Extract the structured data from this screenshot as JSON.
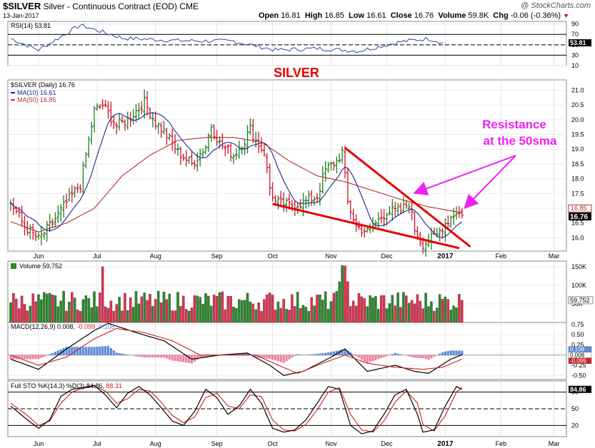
{
  "header": {
    "symbol": "$SILVER",
    "description": "Silver - Continuous Contract (EOD)",
    "exchange": "CME",
    "date": "13-Jan-2017",
    "credit": "@ StockCharts.com",
    "open_label": "Open",
    "open": "16.81",
    "high_label": "High",
    "high": "16.85",
    "low_label": "Low",
    "low": "16.61",
    "close_label": "Close",
    "close": "16.76",
    "volume_label": "Volume",
    "volume": "59.8K",
    "chg_label": "Chg",
    "chg": "-0.06 (-0.36%)"
  },
  "colors": {
    "up": "#1e7d1e",
    "down": "#d01030",
    "ma10": "#1a2a8a",
    "ma50": "#b0303a",
    "annotation_red": "#e60000",
    "annotation_magenta": "#ee22ee",
    "rsi_line": "#2a4aa0",
    "volume_up": "#2a8a2a",
    "volume_down": "#e03050",
    "macd_line": "#000000",
    "macd_signal": "#d02020",
    "hist_pos": "#5a8ad8",
    "hist_neg": "#f080a0",
    "sto_k": "#000000",
    "sto_d": "#d02020"
  },
  "annotations": {
    "title": "SILVER",
    "note_line1": "Resistance",
    "note_line2": "at the 50sma"
  },
  "chart_data": [
    {
      "panel": "rsi",
      "type": "line",
      "legend": "RSI(14) 53.81",
      "last_value_label": "53.81",
      "y_ticks": [
        10,
        30,
        50,
        70,
        90
      ],
      "levels": [
        30,
        70
      ],
      "ylim": [
        10,
        95
      ],
      "key_values": [
        [
          0,
          62
        ],
        [
          10,
          40
        ],
        [
          25,
          88
        ],
        [
          40,
          63
        ],
        [
          60,
          58
        ],
        [
          80,
          57
        ],
        [
          95,
          40
        ],
        [
          110,
          43
        ],
        [
          125,
          38
        ],
        [
          140,
          56
        ],
        [
          150,
          62
        ],
        [
          155,
          54
        ]
      ]
    },
    {
      "panel": "price",
      "type": "ohlc",
      "legend": "$SILVER (Daily) 16.76",
      "ma10_label": "MA(10) 16.61",
      "ma50_label": "MA(50) 16.85",
      "last_price_label": "16.76",
      "ma50_tag": "16.85",
      "ylim": [
        15.55,
        21.35
      ],
      "y_ticks": [
        "16.0",
        "16.5",
        "17.0",
        "17.5",
        "18.0",
        "18.5",
        "19.0",
        "19.5",
        "20.0",
        "20.5",
        "21.0"
      ],
      "x_month_labels": [
        "Jun",
        "Jul",
        "Aug",
        "Sep",
        "Oct",
        "Nov",
        "Dec",
        "2017",
        "Feb",
        "Mar"
      ],
      "close_key_points": [
        [
          0,
          17.2
        ],
        [
          5,
          16.4
        ],
        [
          10,
          15.95
        ],
        [
          15,
          16.5
        ],
        [
          20,
          17.2
        ],
        [
          25,
          17.8
        ],
        [
          30,
          20.3
        ],
        [
          33,
          20.5
        ],
        [
          38,
          19.8
        ],
        [
          42,
          20.0
        ],
        [
          48,
          20.6
        ],
        [
          52,
          19.9
        ],
        [
          55,
          19.6
        ],
        [
          60,
          18.9
        ],
        [
          65,
          18.5
        ],
        [
          70,
          19.1
        ],
        [
          72,
          19.8
        ],
        [
          75,
          19.2
        ],
        [
          80,
          18.8
        ],
        [
          84,
          19.3
        ],
        [
          86,
          19.7
        ],
        [
          88,
          19.3
        ],
        [
          91,
          18.9
        ],
        [
          93,
          17.7
        ],
        [
          95,
          17.2
        ],
        [
          100,
          17.1
        ],
        [
          105,
          17.2
        ],
        [
          110,
          17.4
        ],
        [
          113,
          18.3
        ],
        [
          117,
          18.6
        ],
        [
          119,
          18.9
        ],
        [
          121,
          17.2
        ],
        [
          124,
          16.4
        ],
        [
          128,
          16.2
        ],
        [
          131,
          16.5
        ],
        [
          135,
          16.9
        ],
        [
          140,
          16.9
        ],
        [
          143,
          17.2
        ],
        [
          145,
          16.3
        ],
        [
          148,
          15.8
        ],
        [
          150,
          15.9
        ],
        [
          153,
          16.1
        ],
        [
          156,
          16.5
        ],
        [
          158,
          16.7
        ],
        [
          160,
          16.9
        ],
        [
          162,
          16.76
        ]
      ],
      "ma50_key_points": [
        [
          0,
          16.55
        ],
        [
          10,
          16.2
        ],
        [
          20,
          16.5
        ],
        [
          30,
          17.0
        ],
        [
          40,
          18.1
        ],
        [
          50,
          18.8
        ],
        [
          60,
          19.3
        ],
        [
          70,
          19.4
        ],
        [
          80,
          19.4
        ],
        [
          90,
          19.25
        ],
        [
          100,
          18.6
        ],
        [
          110,
          18.1
        ],
        [
          120,
          17.9
        ],
        [
          130,
          17.6
        ],
        [
          140,
          17.3
        ],
        [
          150,
          17.05
        ],
        [
          162,
          16.85
        ]
      ],
      "trendlines": [
        {
          "name": "upper-resistance",
          "from": [
            120,
            19.05
          ],
          "to": [
            165,
            15.7
          ]
        },
        {
          "name": "lower-support",
          "from": [
            94,
            17.15
          ],
          "to": [
            161,
            15.65
          ]
        }
      ]
    },
    {
      "panel": "volume",
      "type": "bar",
      "legend": "Volume 59,752",
      "last_value_label": "59,752",
      "ylim": [
        0,
        165000
      ],
      "y_ticks": [
        "50K",
        "100K",
        "150K"
      ]
    },
    {
      "panel": "macd",
      "type": "line",
      "legend_prefix": "MACD(12,26,9)",
      "macd_value": "0.008",
      "signal_value": "-0.099",
      "hist_value": "0.108",
      "ylim": [
        -0.6,
        0.8
      ],
      "y_ticks": [
        "-0.50",
        "-0.25",
        "0.25",
        "0.50",
        "0.75"
      ],
      "zero_label": "0.108",
      "value_tags": [
        "0.108",
        "0.008",
        "-0.099"
      ],
      "macd_key_points": [
        [
          0,
          -0.1
        ],
        [
          10,
          -0.35
        ],
        [
          20,
          0.15
        ],
        [
          30,
          0.6
        ],
        [
          35,
          0.78
        ],
        [
          45,
          0.55
        ],
        [
          55,
          0.35
        ],
        [
          65,
          -0.1
        ],
        [
          75,
          0.0
        ],
        [
          85,
          0.05
        ],
        [
          93,
          -0.25
        ],
        [
          98,
          -0.5
        ],
        [
          105,
          -0.4
        ],
        [
          115,
          -0.05
        ],
        [
          120,
          0.15
        ],
        [
          128,
          -0.4
        ],
        [
          138,
          -0.25
        ],
        [
          145,
          -0.4
        ],
        [
          150,
          -0.45
        ],
        [
          158,
          -0.1
        ],
        [
          162,
          0.008
        ]
      ],
      "signal_key_points": [
        [
          0,
          0.0
        ],
        [
          10,
          -0.25
        ],
        [
          20,
          -0.05
        ],
        [
          30,
          0.4
        ],
        [
          38,
          0.65
        ],
        [
          48,
          0.55
        ],
        [
          58,
          0.35
        ],
        [
          68,
          0.0
        ],
        [
          78,
          0.0
        ],
        [
          88,
          0.0
        ],
        [
          96,
          -0.25
        ],
        [
          103,
          -0.45
        ],
        [
          112,
          -0.2
        ],
        [
          120,
          0.0
        ],
        [
          128,
          -0.2
        ],
        [
          138,
          -0.3
        ],
        [
          148,
          -0.35
        ],
        [
          155,
          -0.3
        ],
        [
          162,
          -0.099
        ]
      ]
    },
    {
      "panel": "stochastic",
      "type": "line",
      "legend_prefix": "Full STO %K(14,3) %D(3)",
      "k_value": "84.86",
      "d_value": "88.31",
      "last_value_label": "84.86",
      "ylim": [
        0,
        100
      ],
      "y_ticks": [
        "20",
        "50",
        "80"
      ],
      "levels": [
        20,
        80
      ],
      "k_key_points": [
        [
          0,
          55
        ],
        [
          6,
          30
        ],
        [
          10,
          15
        ],
        [
          14,
          30
        ],
        [
          18,
          72
        ],
        [
          22,
          85
        ],
        [
          26,
          88
        ],
        [
          30,
          92
        ],
        [
          34,
          75
        ],
        [
          38,
          52
        ],
        [
          42,
          78
        ],
        [
          46,
          90
        ],
        [
          50,
          75
        ],
        [
          54,
          52
        ],
        [
          58,
          28
        ],
        [
          62,
          20
        ],
        [
          66,
          45
        ],
        [
          70,
          85
        ],
        [
          74,
          70
        ],
        [
          78,
          40
        ],
        [
          82,
          55
        ],
        [
          86,
          85
        ],
        [
          90,
          60
        ],
        [
          94,
          15
        ],
        [
          98,
          8
        ],
        [
          102,
          12
        ],
        [
          106,
          30
        ],
        [
          110,
          60
        ],
        [
          114,
          90
        ],
        [
          118,
          85
        ],
        [
          122,
          20
        ],
        [
          126,
          5
        ],
        [
          130,
          10
        ],
        [
          134,
          40
        ],
        [
          138,
          75
        ],
        [
          142,
          85
        ],
        [
          146,
          40
        ],
        [
          148,
          8
        ],
        [
          152,
          12
        ],
        [
          156,
          55
        ],
        [
          160,
          90
        ],
        [
          162,
          84.86
        ]
      ],
      "d_key_points": [
        [
          0,
          60
        ],
        [
          6,
          38
        ],
        [
          10,
          20
        ],
        [
          14,
          28
        ],
        [
          18,
          60
        ],
        [
          22,
          80
        ],
        [
          26,
          87
        ],
        [
          30,
          90
        ],
        [
          34,
          82
        ],
        [
          38,
          60
        ],
        [
          42,
          68
        ],
        [
          46,
          85
        ],
        [
          50,
          82
        ],
        [
          54,
          62
        ],
        [
          58,
          38
        ],
        [
          62,
          25
        ],
        [
          66,
          35
        ],
        [
          70,
          70
        ],
        [
          74,
          78
        ],
        [
          78,
          55
        ],
        [
          82,
          50
        ],
        [
          86,
          75
        ],
        [
          90,
          72
        ],
        [
          94,
          30
        ],
        [
          98,
          12
        ],
        [
          102,
          10
        ],
        [
          106,
          22
        ],
        [
          110,
          48
        ],
        [
          114,
          80
        ],
        [
          118,
          88
        ],
        [
          122,
          40
        ],
        [
          126,
          12
        ],
        [
          130,
          8
        ],
        [
          134,
          28
        ],
        [
          138,
          62
        ],
        [
          142,
          82
        ],
        [
          146,
          60
        ],
        [
          148,
          22
        ],
        [
          152,
          10
        ],
        [
          156,
          38
        ],
        [
          160,
          80
        ],
        [
          162,
          88.31
        ]
      ]
    }
  ]
}
